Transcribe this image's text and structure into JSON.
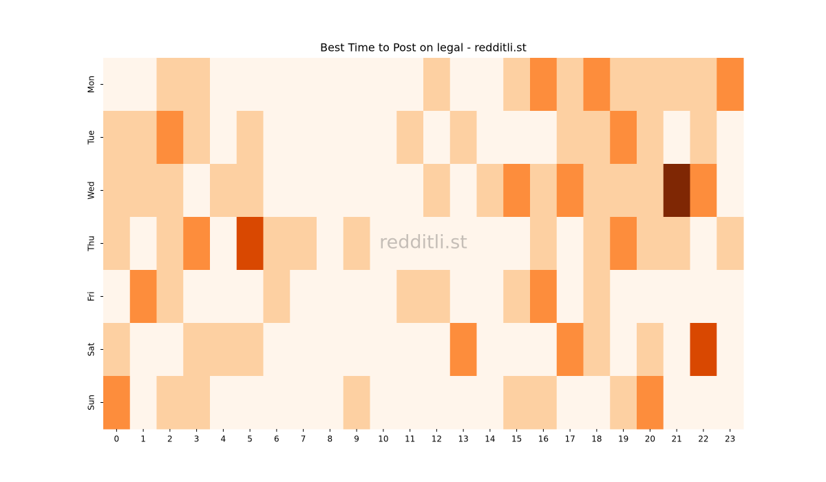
{
  "chart_data": {
    "type": "heatmap",
    "title": "Best Time to Post on legal - redditli.st",
    "watermark": "redditli.st",
    "x": [
      0,
      1,
      2,
      3,
      4,
      5,
      6,
      7,
      8,
      9,
      10,
      11,
      12,
      13,
      14,
      15,
      16,
      17,
      18,
      19,
      20,
      21,
      22,
      23
    ],
    "categories": [
      "Mon",
      "Tue",
      "Wed",
      "Thu",
      "Fri",
      "Sat",
      "Sun"
    ],
    "z": [
      [
        0,
        0,
        1,
        1,
        0,
        0,
        0,
        0,
        0,
        0,
        0,
        0,
        1,
        0,
        0,
        1,
        2,
        1,
        2,
        1,
        1,
        1,
        1,
        2
      ],
      [
        1,
        1,
        2,
        1,
        0,
        1,
        0,
        0,
        0,
        0,
        0,
        1,
        0,
        1,
        0,
        0,
        0,
        1,
        1,
        2,
        1,
        0,
        1,
        0
      ],
      [
        1,
        1,
        1,
        0,
        1,
        1,
        0,
        0,
        0,
        0,
        0,
        0,
        1,
        0,
        1,
        2,
        1,
        2,
        1,
        1,
        1,
        4,
        2,
        0
      ],
      [
        1,
        0,
        1,
        2,
        0,
        3,
        1,
        1,
        0,
        1,
        0,
        0,
        0,
        0,
        0,
        0,
        1,
        0,
        1,
        2,
        1,
        1,
        0,
        1
      ],
      [
        0,
        2,
        1,
        0,
        0,
        0,
        1,
        0,
        0,
        0,
        0,
        1,
        1,
        0,
        0,
        1,
        2,
        0,
        1,
        0,
        0,
        0,
        0,
        0
      ],
      [
        1,
        0,
        0,
        1,
        1,
        1,
        0,
        0,
        0,
        0,
        0,
        0,
        0,
        2,
        0,
        0,
        0,
        2,
        1,
        0,
        1,
        0,
        3,
        0
      ],
      [
        2,
        0,
        1,
        1,
        0,
        0,
        0,
        0,
        0,
        1,
        0,
        0,
        0,
        0,
        0,
        1,
        1,
        0,
        0,
        1,
        2,
        0,
        0,
        0
      ]
    ],
    "color_scale": [
      "#fff5eb",
      "#fdd0a2",
      "#fd8d3c",
      "#d94801",
      "#7f2704"
    ]
  }
}
